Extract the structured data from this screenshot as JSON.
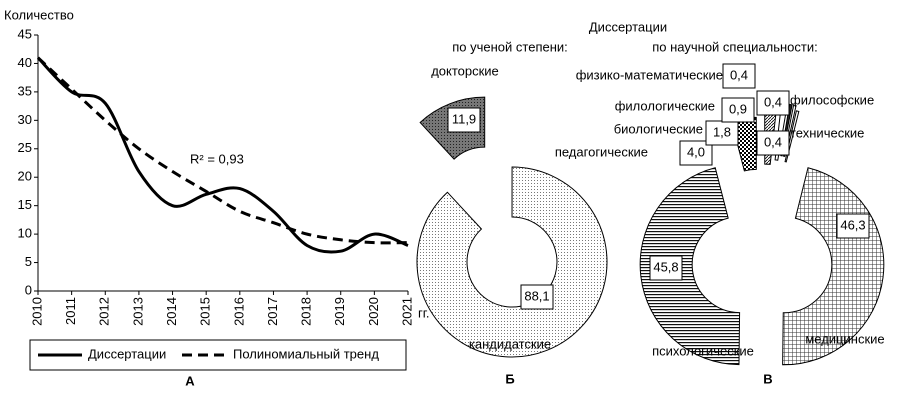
{
  "heading": "Диссертации",
  "chart_data": [
    {
      "type": "line",
      "label": "А",
      "ylabel": "Количество",
      "x_unit": "гг.",
      "x": [
        2010,
        2011,
        2012,
        2013,
        2014,
        2015,
        2016,
        2017,
        2018,
        2019,
        2020,
        2021
      ],
      "series": [
        {
          "name": "Диссертации",
          "color": "#000000",
          "dash": false,
          "values": [
            41,
            35,
            33,
            21,
            15,
            17,
            18,
            14,
            8,
            7,
            10,
            8
          ]
        },
        {
          "name": "Полиномиальный тренд",
          "color": "#000000",
          "dash": true,
          "values": [
            41,
            35.5,
            30,
            25,
            21,
            17.5,
            14,
            12,
            10,
            9,
            8.5,
            8.5
          ]
        }
      ],
      "annotation": "R² = 0,93",
      "xlim": [
        2010,
        2021
      ],
      "xticks": [
        2010,
        2011,
        2012,
        2013,
        2014,
        2015,
        2016,
        2017,
        2018,
        2019,
        2020,
        2021
      ],
      "ylim": [
        0,
        45
      ],
      "yticks": [
        0,
        5,
        10,
        15,
        20,
        25,
        30,
        35,
        40,
        45
      ],
      "grid": false
    },
    {
      "type": "donut",
      "label": "Б",
      "title": "по ученой степени:",
      "categories": [
        "докторские",
        "кандидатские"
      ],
      "values": [
        11.9,
        88.1
      ],
      "value_labels": [
        "11,9",
        "88,1"
      ],
      "patterns": [
        "dots-dark",
        "dots-light"
      ]
    },
    {
      "type": "donut",
      "label": "В",
      "title": "по научной специальности:",
      "categories": [
        "медицинские",
        "психологические",
        "педагогические",
        "биологические",
        "филологические",
        "физико-математические",
        "философские",
        "технические"
      ],
      "values": [
        46.3,
        45.8,
        4.0,
        1.8,
        0.9,
        0.4,
        0.4,
        0.4
      ],
      "value_labels": [
        "46,3",
        "45,8",
        "4,0",
        "1,8",
        "0,9",
        "0,4",
        "0,4",
        "0,4"
      ],
      "patterns": [
        "grid",
        "hlines",
        "checker",
        "hatch",
        "plain",
        "dark",
        "plain",
        "plain"
      ]
    }
  ]
}
